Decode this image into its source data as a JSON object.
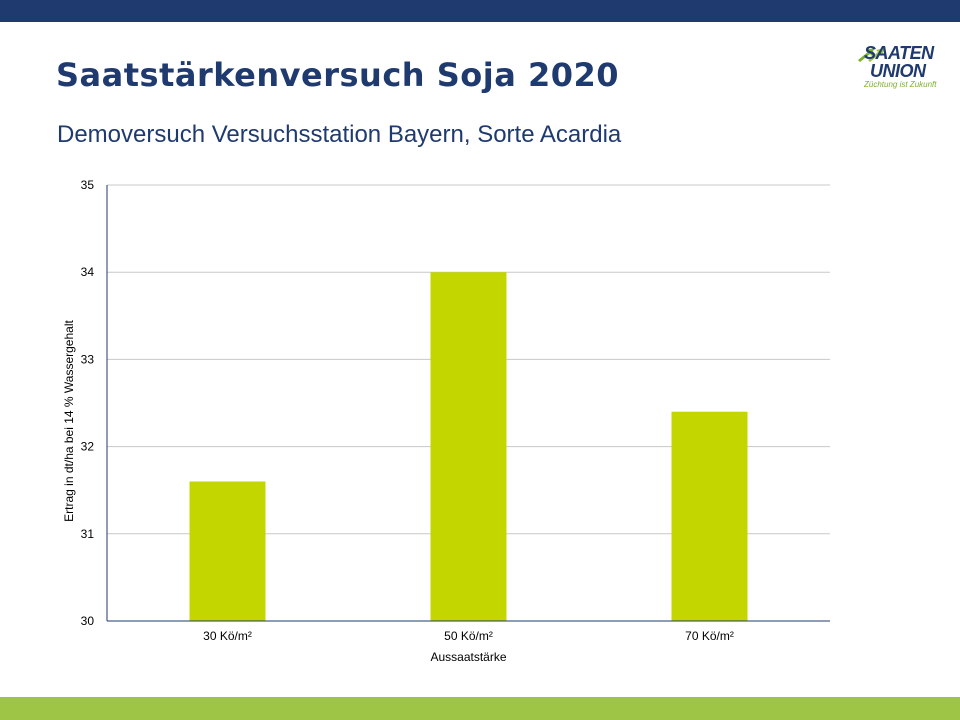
{
  "slide": {
    "title": "Saatstärkenversuch Soja 2020",
    "subtitle": "Demoversuch Versuchsstation Bayern, Sorte Acardia"
  },
  "logo": {
    "line1": "SAATEN",
    "line2": "UNION",
    "tagline": "Züchtung ist Zukunft"
  },
  "colors": {
    "header_band": "#1f3a6e",
    "footer_band": "#9ec546",
    "bar": "#c4d600",
    "title": "#1f3a6e"
  },
  "chart_data": {
    "type": "bar",
    "categories": [
      "30 Kö/m²",
      "50 Kö/m²",
      "70 Kö/m²"
    ],
    "values": [
      31.6,
      34.0,
      32.4
    ],
    "xlabel": "Aussaatstärke",
    "ylabel": "Ertrag in dt/ha bei 14 % Wassergehalt",
    "ylim": [
      30,
      35
    ],
    "yticks": [
      "30",
      "31",
      "32",
      "33",
      "34",
      "35"
    ],
    "grid": true,
    "legend": false
  }
}
